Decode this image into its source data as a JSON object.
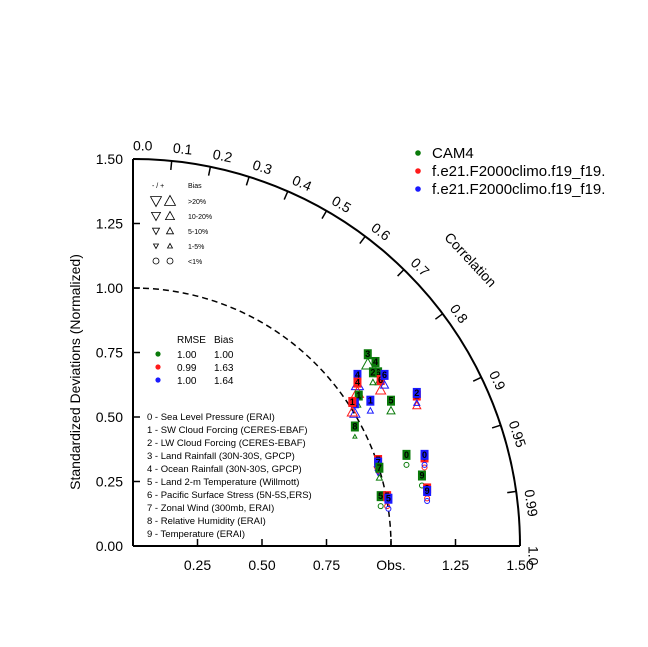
{
  "chart_data": {
    "type": "taylor",
    "title": "",
    "ylabel": "Standardized Deviations (Normalized)",
    "arc_label": "Correlation",
    "obs_label": "Obs.",
    "x_ticks": [
      "0.25",
      "0.50",
      "0.75",
      "Obs.",
      "1.25",
      "1.50"
    ],
    "x_tick_values": [
      0.25,
      0.5,
      0.75,
      1.0,
      1.25,
      1.5
    ],
    "y_ticks": [
      "0.00",
      "0.25",
      "0.50",
      "0.75",
      "1.00",
      "1.25",
      "1.50"
    ],
    "y_tick_values": [
      0,
      0.25,
      0.5,
      0.75,
      1.0,
      1.25,
      1.5
    ],
    "corr_ticks": [
      "0.0",
      "0.1",
      "0.2",
      "0.3",
      "0.4",
      "0.5",
      "0.6",
      "0.7",
      "0.8",
      "0.9",
      "0.95",
      "0.99",
      "1.0"
    ],
    "corr_tick_values": [
      0.0,
      0.1,
      0.2,
      0.3,
      0.4,
      0.5,
      0.6,
      0.7,
      0.8,
      0.9,
      0.95,
      0.99,
      1.0
    ],
    "std_max": 1.5,
    "ref_std": 1.0,
    "series": [
      {
        "name": "CAM4",
        "color": "#0a7a0a"
      },
      {
        "name": "f.e21.F2000climo.f19_f19.",
        "color": "#ff1a1a"
      },
      {
        "name": "f.e21.F2000climo.f19_f19.",
        "color": "#1a1aff"
      }
    ],
    "bias_legend": {
      "header_left": "- / +",
      "header_right": "Bias",
      "rows": [
        {
          "label": ">20%",
          "shape": "triangle",
          "size": 5.5
        },
        {
          "label": "10-20%",
          "shape": "triangle",
          "size": 4.5
        },
        {
          "label": "5-10%",
          "shape": "triangle",
          "size": 3.5
        },
        {
          "label": "1-5%",
          "shape": "triangle",
          "size": 2.5
        },
        {
          "label": "<1%",
          "shape": "circle",
          "size": 3
        }
      ]
    },
    "rmse_table": {
      "header_rmse": "RMSE",
      "header_bias": "Bias",
      "rows": [
        {
          "color": "#0a7a0a",
          "rmse": "1.00",
          "bias": "1.00"
        },
        {
          "color": "#ff1a1a",
          "rmse": "0.99",
          "bias": "1.63"
        },
        {
          "color": "#1a1aff",
          "rmse": "1.00",
          "bias": "1.64"
        }
      ]
    },
    "variables": [
      "0 - Sea Level Pressure (ERAI)",
      "1 - SW Cloud Forcing (CERES-EBAF)",
      "2 - LW Cloud Forcing (CERES-EBAF)",
      "3 - Land Rainfall (30N-30S, GPCP)",
      "4 - Ocean Rainfall (30N-30S, GPCP)",
      "5 - Land 2-m Temperature (Willmott)",
      "6 - Pacific Surface Stress (5N-5S,ERS)",
      "7 - Zonal Wind (300mb, ERAI)",
      "8 - Relative Humidity (ERAI)",
      "9 - Temperature (ERAI)"
    ],
    "points": [
      {
        "label": "3",
        "x": 0.91,
        "y": 0.72,
        "color": "#0a7a0a",
        "marker": "tri-up-hollow",
        "size": 6
      },
      {
        "label": "4",
        "x": 0.94,
        "y": 0.69,
        "color": "#0a7a0a",
        "marker": "tri-up-hollow",
        "size": 4
      },
      {
        "label": "6",
        "x": 0.95,
        "y": 0.65,
        "color": "#0a7a0a",
        "marker": "tri-up-hollow",
        "size": 3
      },
      {
        "label": "2",
        "x": 0.93,
        "y": 0.65,
        "color": "#0a7a0a",
        "marker": "tri-up-hollow",
        "size": 3
      },
      {
        "label": "6",
        "x": 0.96,
        "y": 0.62,
        "color": "#ff1a1a",
        "marker": "tri-up-hollow",
        "size": 5
      },
      {
        "label": "6",
        "x": 0.975,
        "y": 0.64,
        "color": "#1a1aff",
        "marker": "tri-up-hollow",
        "size": 4
      },
      {
        "label": "4",
        "x": 0.87,
        "y": 0.64,
        "color": "#1a1aff",
        "marker": "tri-up-hollow",
        "size": 6
      },
      {
        "label": "4",
        "x": 0.87,
        "y": 0.61,
        "color": "#ff1a1a",
        "marker": "tri-up-hollow",
        "size": 6
      },
      {
        "label": "1",
        "x": 0.875,
        "y": 0.56,
        "color": "#0a7a0a",
        "marker": "tri-up-hollow",
        "size": 2
      },
      {
        "label": "1",
        "x": 0.86,
        "y": 0.53,
        "color": "#1a1aff",
        "marker": "tri-up-hollow",
        "size": 5
      },
      {
        "label": "1",
        "x": 0.85,
        "y": 0.535,
        "color": "#ff1a1a",
        "marker": "tri-up-hollow",
        "size": 5
      },
      {
        "label": "1",
        "x": 0.92,
        "y": 0.54,
        "color": "#1a1aff",
        "marker": "tri-up-hollow",
        "size": 3
      },
      {
        "label": "5",
        "x": 1.0,
        "y": 0.54,
        "color": "#0a7a0a",
        "marker": "tri-up-hollow",
        "size": 4
      },
      {
        "label": "2",
        "x": 1.1,
        "y": 0.56,
        "color": "#ff1a1a",
        "marker": "tri-up-hollow",
        "size": 4
      },
      {
        "label": "2",
        "x": 1.1,
        "y": 0.57,
        "color": "#1a1aff",
        "marker": "tri-up-hollow",
        "size": 3
      },
      {
        "label": "8",
        "x": 0.86,
        "y": 0.44,
        "color": "#0a7a0a",
        "marker": "tri-up-hollow",
        "size": 2
      },
      {
        "label": "0",
        "x": 1.06,
        "y": 0.33,
        "color": "#0a7a0a",
        "marker": "circle",
        "size": 2.5
      },
      {
        "label": "0",
        "x": 1.13,
        "y": 0.32,
        "color": "#ff1a1a",
        "marker": "circle",
        "size": 2.5
      },
      {
        "label": "0",
        "x": 1.13,
        "y": 0.33,
        "color": "#1a1aff",
        "marker": "circle",
        "size": 2.5
      },
      {
        "label": "7",
        "x": 0.95,
        "y": 0.31,
        "color": "#ff1a1a",
        "marker": "tri-down-hollow",
        "size": 4
      },
      {
        "label": "7",
        "x": 0.95,
        "y": 0.3,
        "color": "#1a1aff",
        "marker": "tri-down-hollow",
        "size": 3
      },
      {
        "label": "7",
        "x": 0.955,
        "y": 0.28,
        "color": "#0a7a0a",
        "marker": "tri-up-hollow",
        "size": 3
      },
      {
        "label": "9",
        "x": 1.12,
        "y": 0.25,
        "color": "#0a7a0a",
        "marker": "circle",
        "size": 2.5
      },
      {
        "label": "9",
        "x": 1.14,
        "y": 0.2,
        "color": "#ff1a1a",
        "marker": "circle",
        "size": 2.5
      },
      {
        "label": "9",
        "x": 1.14,
        "y": 0.19,
        "color": "#1a1aff",
        "marker": "circle",
        "size": 2.5
      },
      {
        "label": "5",
        "x": 0.96,
        "y": 0.17,
        "color": "#0a7a0a",
        "marker": "circle",
        "size": 2.5
      },
      {
        "label": "5",
        "x": 0.985,
        "y": 0.17,
        "color": "#ff1a1a",
        "marker": "circle",
        "size": 2.5
      },
      {
        "label": "5",
        "x": 0.99,
        "y": 0.16,
        "color": "#1a1aff",
        "marker": "circle",
        "size": 2.5
      }
    ]
  }
}
